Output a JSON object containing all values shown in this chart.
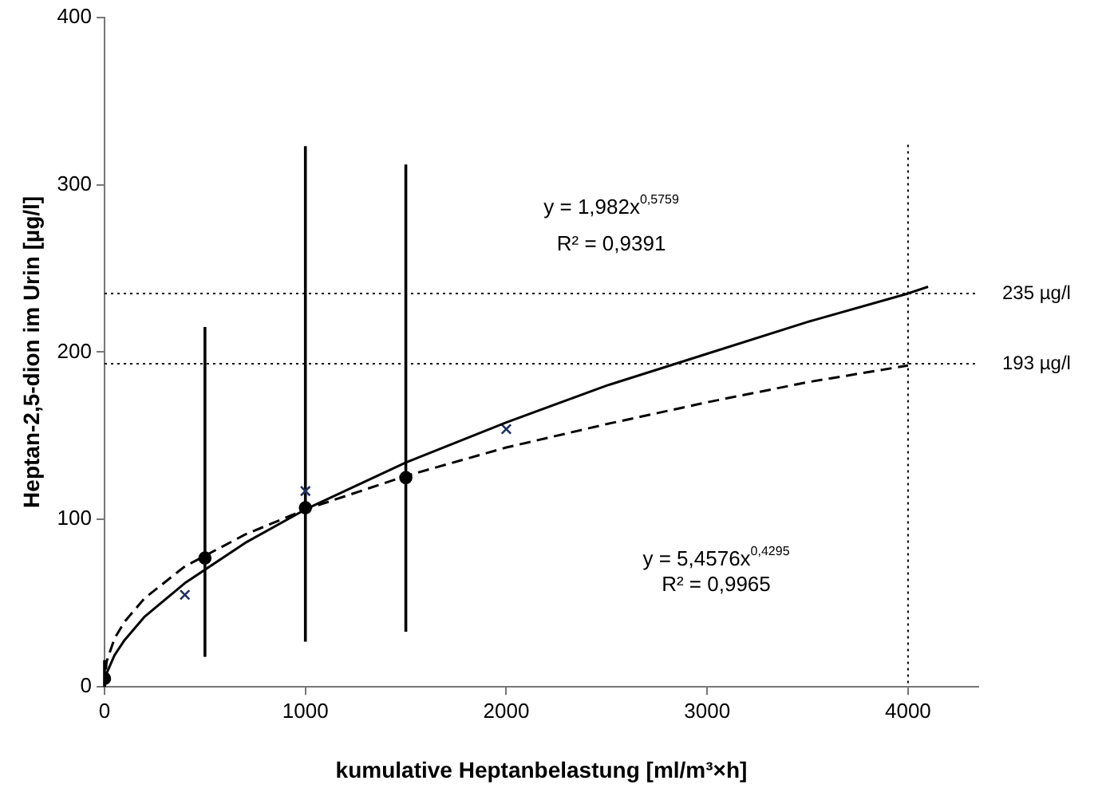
{
  "chart_data": {
    "type": "scatter",
    "xlabel": "kumulative Heptanbelastung [ml/m³×h]",
    "ylabel": "Heptan-2,5-dion im Urin [µg/l]",
    "xlim": [
      0,
      4350
    ],
    "xticks": [
      0,
      1000,
      2000,
      3000,
      4000
    ],
    "ylim": [
      0,
      400
    ],
    "yticks": [
      0,
      100,
      200,
      300,
      400
    ],
    "series": [
      {
        "type": "line",
        "color": "#000000",
        "line_style": "solid",
        "marker": "none",
        "x": [
          0,
          10,
          50,
          100,
          200,
          400,
          700,
          1000,
          1500,
          2000,
          2500,
          3000,
          3500,
          4000,
          4100
        ],
        "values": [
          0,
          8,
          19,
          28,
          42,
          62,
          86,
          106,
          134,
          158,
          180,
          199,
          218,
          235,
          239
        ]
      },
      {
        "type": "line",
        "color": "#000000",
        "line_style": "dashed",
        "marker": "none",
        "x": [
          0,
          10,
          50,
          100,
          200,
          400,
          700,
          1000,
          1500,
          2000,
          2500,
          3000,
          3500,
          4000
        ],
        "values": [
          0,
          15,
          29,
          39,
          53,
          72,
          91,
          106,
          126,
          143,
          157,
          170,
          182,
          192
        ]
      },
      {
        "type": "scatter",
        "color": "#000000",
        "marker": "circle",
        "x": [
          0,
          500,
          1000,
          1500
        ],
        "values": [
          5,
          77,
          107,
          125
        ],
        "errors": [
          [
            0,
            16
          ],
          [
            18,
            215
          ],
          [
            27,
            323
          ],
          [
            33,
            312
          ]
        ]
      },
      {
        "type": "scatter",
        "color": "#1f2f5f",
        "marker": "cross",
        "x": [
          400,
          1000,
          2000
        ],
        "values": [
          55,
          117,
          154
        ]
      }
    ],
    "ref_lines": [
      {
        "axis": "y",
        "value": 235,
        "label": "235 µg/l",
        "line_style": "dotted"
      },
      {
        "axis": "y",
        "value": 193,
        "label": "193 µg/l",
        "line_style": "dotted"
      },
      {
        "axis": "x",
        "value": 4000,
        "line_style": "dotted"
      }
    ],
    "annotations": [
      "y = 1,982x$^{0,5759}$",
      "R² = 0,9391",
      "y = 5,4576x$^{0,4295}$",
      "R² = 0,9965"
    ]
  }
}
